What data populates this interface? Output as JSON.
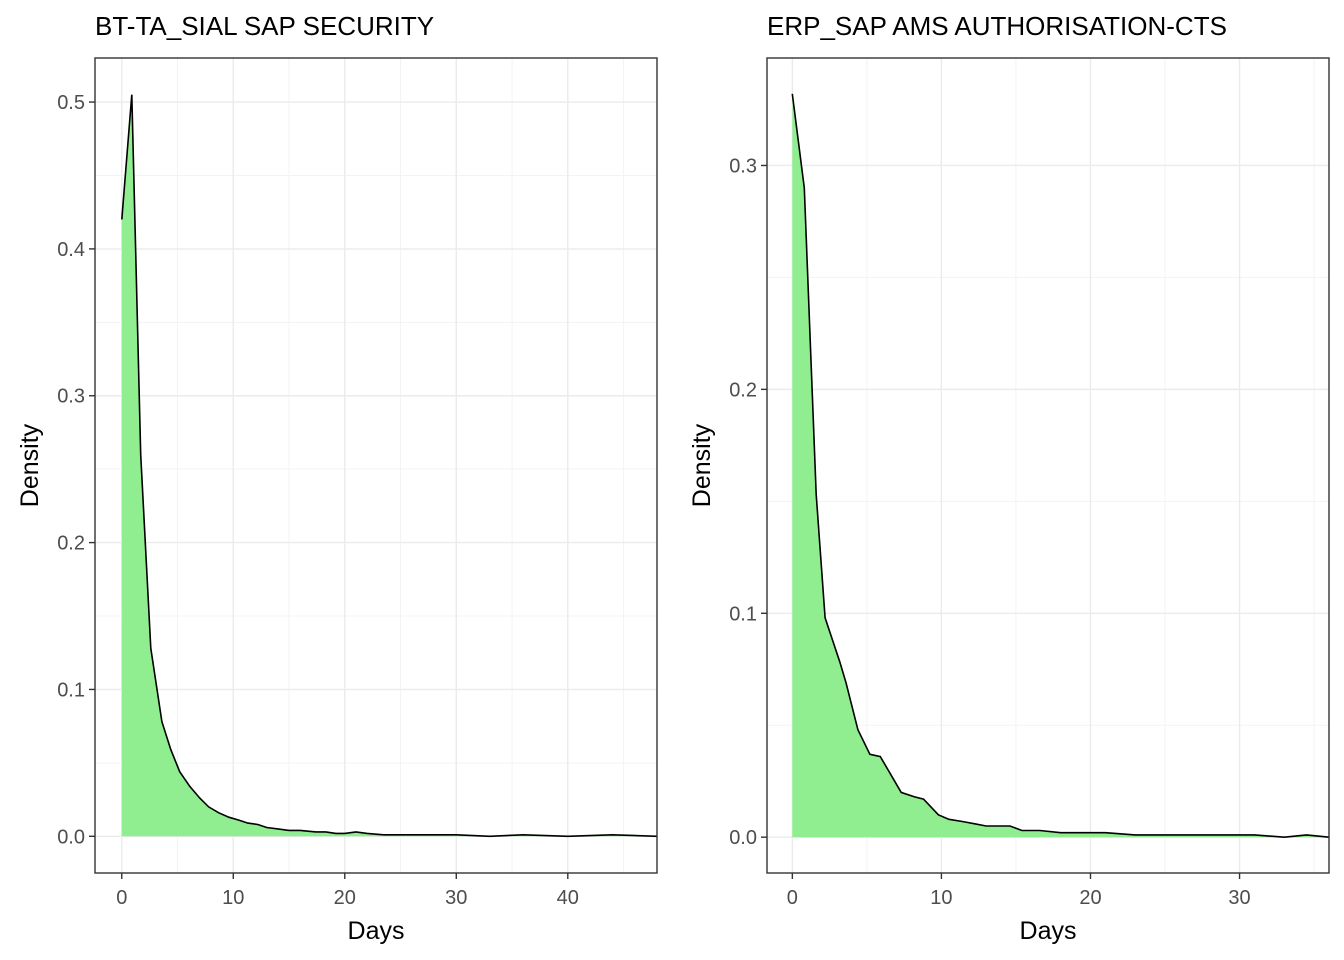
{
  "chart_data": [
    {
      "type": "area",
      "title": "BT-TA_SIAL SAP SECURITY",
      "xlabel": "Days",
      "ylabel": "Density",
      "xlim": [
        -2.4,
        48.0
      ],
      "ylim": [
        -0.025,
        0.53
      ],
      "xticks": [
        0,
        10,
        20,
        30,
        40
      ],
      "yticks": [
        0.0,
        0.1,
        0.2,
        0.3,
        0.4,
        0.5
      ],
      "ytick_labels": [
        "0.0",
        "0.1",
        "0.2",
        "0.3",
        "0.4",
        "0.5"
      ],
      "grid": true,
      "fill_color": "#90ee90",
      "line_color": "#000000",
      "x": [
        0,
        0.9,
        1.7,
        2.6,
        3.6,
        4.4,
        5.2,
        6.1,
        7.0,
        7.8,
        8.7,
        9.6,
        10.5,
        11.3,
        12.2,
        13.0,
        14.0,
        15.0,
        16.0,
        17.4,
        18.3,
        19.2,
        20.0,
        21.0,
        22.0,
        23.5,
        25.0,
        27.0,
        30.0,
        33.0,
        36.0,
        40.0,
        44.0,
        48.0
      ],
      "y": [
        0.42,
        0.505,
        0.26,
        0.128,
        0.078,
        0.059,
        0.044,
        0.034,
        0.026,
        0.02,
        0.016,
        0.013,
        0.011,
        0.009,
        0.008,
        0.006,
        0.005,
        0.004,
        0.004,
        0.003,
        0.003,
        0.002,
        0.002,
        0.003,
        0.002,
        0.001,
        0.001,
        0.001,
        0.001,
        0.0,
        0.001,
        0.0,
        0.001,
        0.0
      ]
    },
    {
      "type": "area",
      "title": "ERP_SAP AMS AUTHORISATION-CTS",
      "xlabel": "Days",
      "ylabel": "Density",
      "xlim": [
        -1.7,
        36.0
      ],
      "ylim": [
        -0.016,
        0.348
      ],
      "xticks": [
        0,
        10,
        20,
        30
      ],
      "yticks": [
        0.0,
        0.1,
        0.2,
        0.3
      ],
      "ytick_labels": [
        "0.0",
        "0.1",
        "0.2",
        "0.3"
      ],
      "grid": true,
      "fill_color": "#90ee90",
      "line_color": "#000000",
      "x": [
        0,
        0.8,
        1.6,
        2.2,
        3.2,
        3.6,
        4.4,
        5.2,
        5.9,
        7.3,
        8.2,
        8.8,
        9.8,
        10.5,
        11.4,
        12.2,
        13.0,
        13.8,
        14.6,
        15.4,
        16.6,
        18.0,
        19.5,
        21.0,
        23.0,
        25.0,
        27.0,
        29.0,
        31.0,
        33.0,
        34.5,
        36.0
      ],
      "y": [
        0.332,
        0.29,
        0.153,
        0.098,
        0.078,
        0.069,
        0.048,
        0.037,
        0.036,
        0.02,
        0.018,
        0.017,
        0.01,
        0.008,
        0.007,
        0.006,
        0.005,
        0.005,
        0.005,
        0.003,
        0.003,
        0.002,
        0.002,
        0.002,
        0.001,
        0.001,
        0.001,
        0.001,
        0.001,
        0.0,
        0.001,
        0.0
      ]
    }
  ]
}
